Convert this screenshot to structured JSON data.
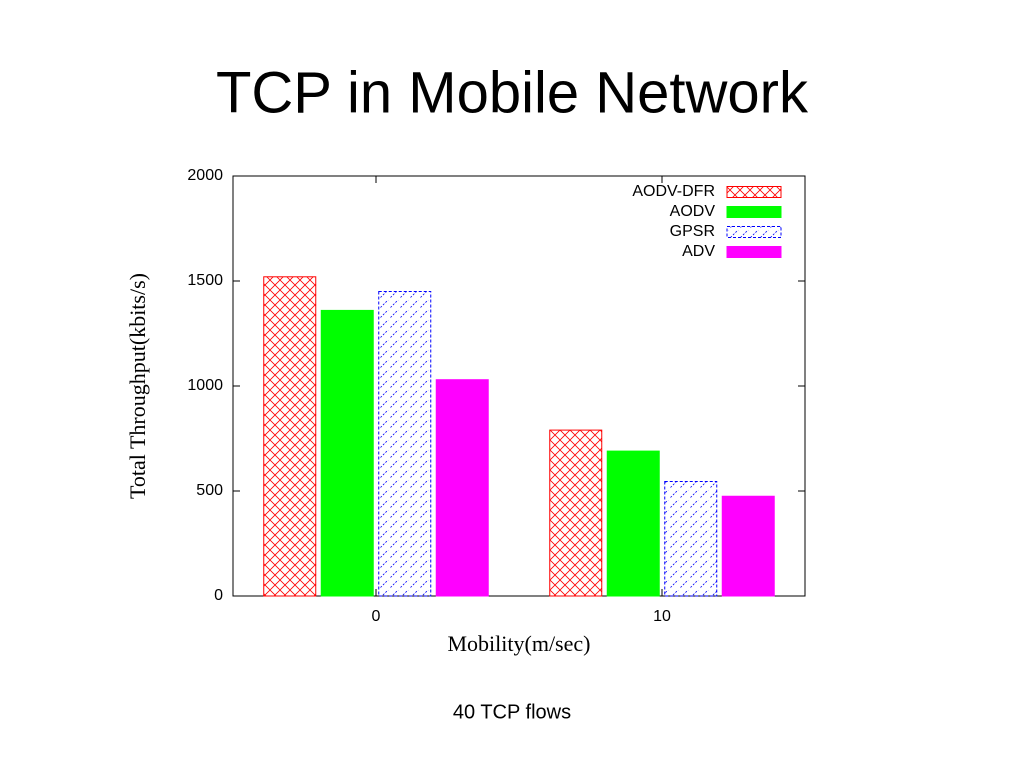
{
  "title": "TCP in Mobile Network",
  "caption": "40 TCP flows",
  "chart_data": {
    "type": "bar",
    "x_label": "Mobility(m/sec)",
    "y_label": "Total Throughput(kbits/s)",
    "categories": [
      "0",
      "10"
    ],
    "series": [
      {
        "name": "AODV-DFR",
        "color": "#ff0000",
        "pattern": "crosshatch",
        "values": [
          1520,
          790
        ]
      },
      {
        "name": "AODV",
        "color": "#00ff00",
        "pattern": "solid",
        "values": [
          1360,
          690
        ]
      },
      {
        "name": "GPSR",
        "color": "#0000ff",
        "pattern": "diagonal",
        "values": [
          1450,
          545
        ]
      },
      {
        "name": "ADV",
        "color": "#ff00ff",
        "pattern": "solid",
        "values": [
          1030,
          475
        ]
      }
    ],
    "ylim": [
      0,
      2000
    ],
    "yticks": [
      0,
      500,
      1000,
      1500,
      2000
    ],
    "legend": "top-right"
  }
}
